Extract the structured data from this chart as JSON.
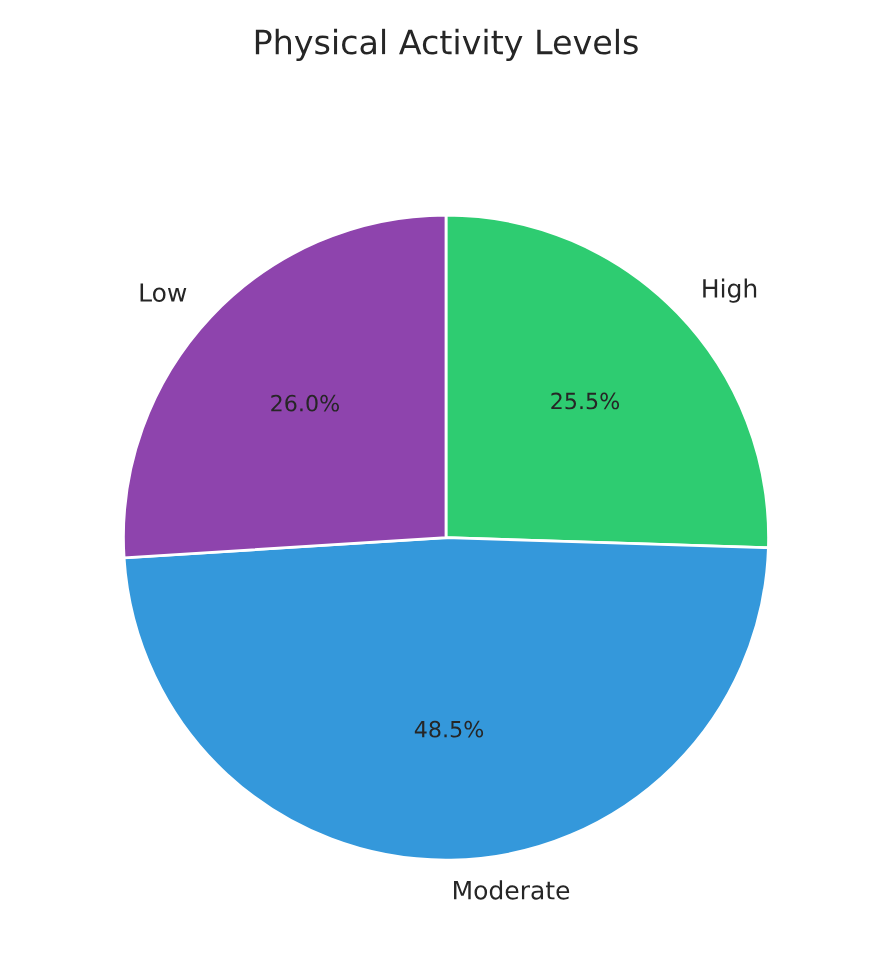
{
  "chart_data": {
    "type": "pie",
    "title": "Physical Activity Levels",
    "categories": [
      "High",
      "Moderate",
      "Low"
    ],
    "values": [
      25.5,
      48.5,
      26.0
    ],
    "colors": [
      "#2ecc71",
      "#3498db",
      "#8e44ad"
    ],
    "value_labels": [
      "25.5%",
      "48.5%",
      "26.0%"
    ],
    "legend": false
  }
}
